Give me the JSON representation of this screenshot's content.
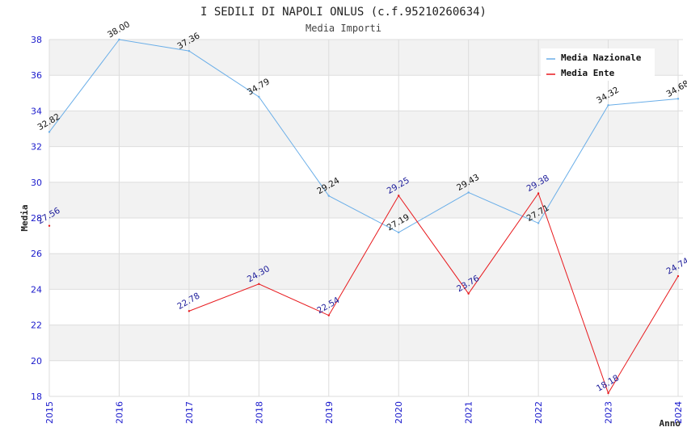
{
  "chart_data": {
    "type": "line",
    "title": "I SEDILI DI NAPOLI ONLUS (c.f.95210260634)",
    "subtitle": "Media Importi",
    "xlabel": "Anno",
    "ylabel": "Media",
    "x": [
      "2015",
      "2016",
      "2017",
      "2018",
      "2019",
      "2020",
      "2021",
      "2022",
      "2023",
      "2024"
    ],
    "ylim": [
      18,
      38
    ],
    "yticks": [
      18,
      20,
      22,
      24,
      26,
      28,
      30,
      32,
      34,
      36,
      38
    ],
    "grid": true,
    "legend_position": "top-right",
    "series": [
      {
        "name": "Media Nazionale",
        "color": "#6aaee8",
        "label_color": "#111111",
        "values": [
          32.82,
          38.0,
          37.36,
          34.79,
          29.24,
          27.19,
          29.43,
          27.71,
          34.32,
          34.68
        ],
        "labels": [
          "32.82",
          "38.00",
          "37.36",
          "34.79",
          "29.24",
          "27.19",
          "29.43",
          "27.71",
          "34.32",
          "34.68"
        ]
      },
      {
        "name": "Media Ente",
        "color": "#e8191d",
        "label_color": "#1a1a99",
        "values": [
          27.56,
          null,
          22.78,
          24.3,
          22.54,
          29.25,
          23.76,
          29.38,
          18.18,
          24.74
        ],
        "labels": [
          "27.56",
          "",
          "22.78",
          "24.30",
          "22.54",
          "29.25",
          "23.76",
          "29.38",
          "18.18",
          "24.74"
        ]
      }
    ]
  }
}
